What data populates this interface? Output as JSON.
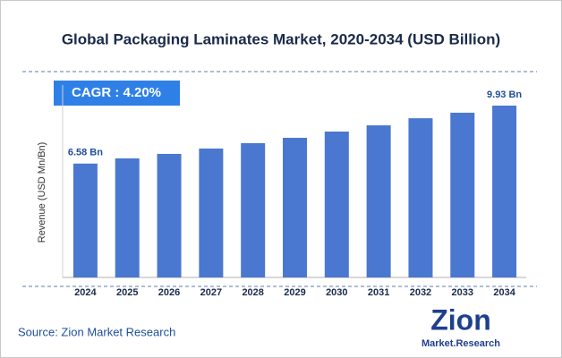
{
  "chart_data": {
    "type": "bar",
    "title": "Global Packaging Laminates Market, 2020-2034 (USD Billion)",
    "y_label": "Revenue (USD Mn/Bn)",
    "cagr_label": "CAGR : 4.20%",
    "source": "Source: Zion Market Research",
    "logo_name": "Zion",
    "logo_subtitle": "Market.Research",
    "categories": [
      "2024",
      "2025",
      "2026",
      "2027",
      "2028",
      "2029",
      "2030",
      "2031",
      "2032",
      "2033",
      "2034"
    ],
    "values": [
      6.58,
      6.88,
      7.14,
      7.45,
      7.76,
      8.07,
      8.43,
      8.79,
      9.2,
      9.52,
      9.93
    ],
    "value_labels": [
      "6.58 Bn",
      null,
      null,
      null,
      null,
      null,
      null,
      null,
      null,
      null,
      "9.93 Bn"
    ],
    "color": "#4a78d1"
  }
}
